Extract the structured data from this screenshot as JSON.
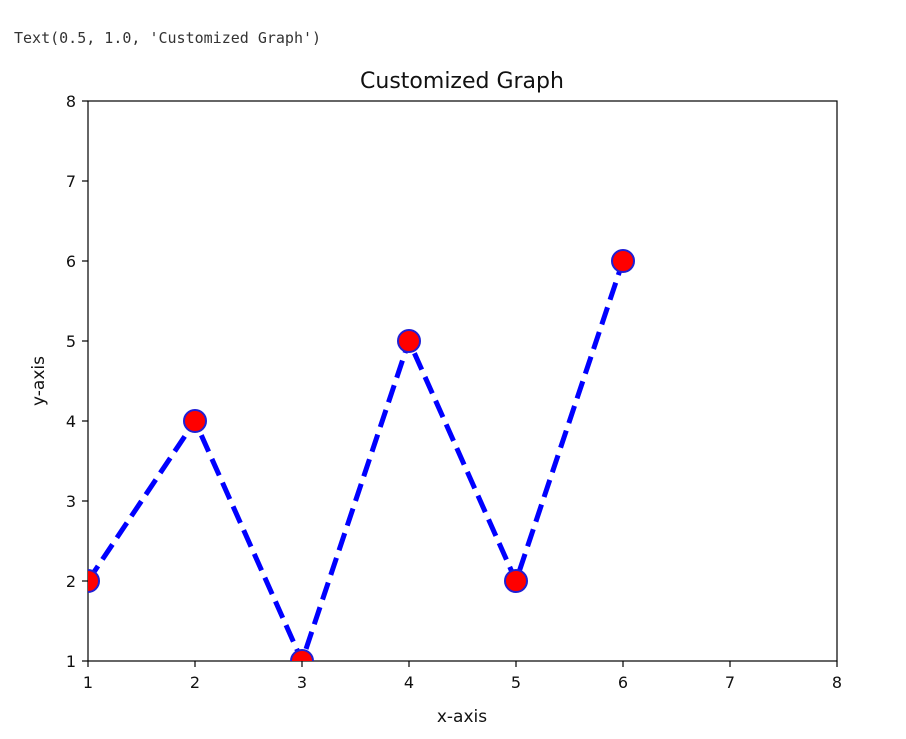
{
  "output_text": "Text(0.5, 1.0, 'Customized Graph')",
  "chart_data": {
    "type": "line",
    "title": "Customized Graph",
    "xlabel": "x-axis",
    "ylabel": "y-axis",
    "xlim": [
      1,
      8
    ],
    "ylim": [
      1,
      8
    ],
    "xticks": [
      1,
      2,
      3,
      4,
      5,
      6,
      7,
      8
    ],
    "yticks": [
      1,
      2,
      3,
      4,
      5,
      6,
      7,
      8
    ],
    "x": [
      1,
      2,
      3,
      4,
      5,
      6
    ],
    "y": [
      2,
      4,
      1,
      5,
      2,
      6
    ],
    "line_style": "dashed",
    "line_color": "#0000ff",
    "marker": "circle",
    "marker_face_color": "#ff0000",
    "marker_edge_color": "#1f1fd6",
    "grid": false
  }
}
